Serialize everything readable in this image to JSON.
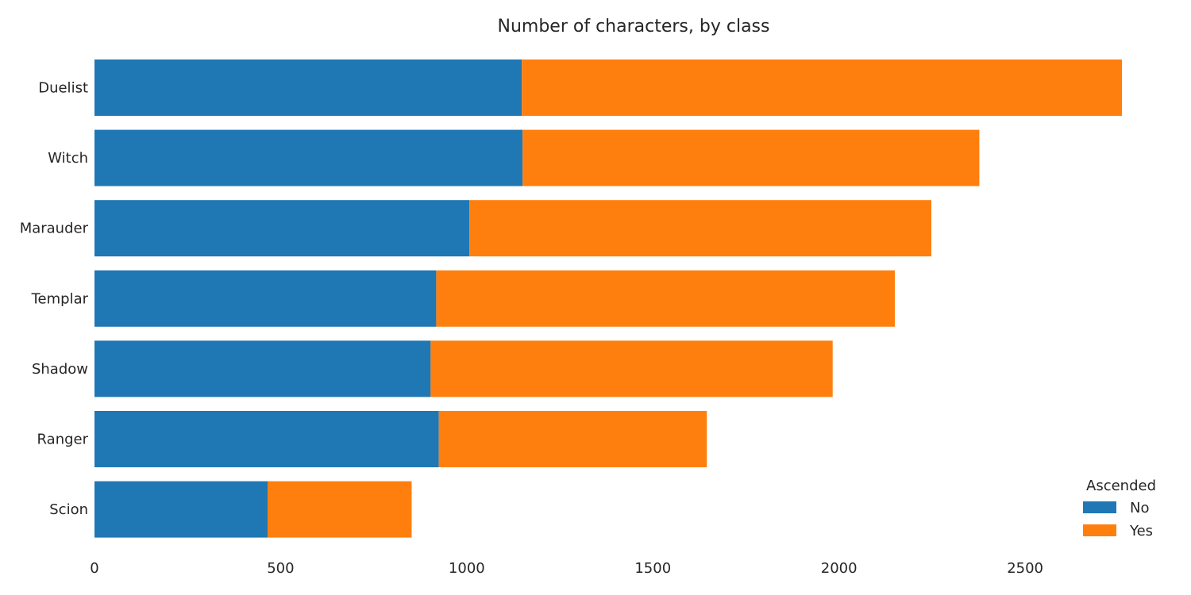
{
  "chart_data": {
    "type": "bar",
    "orientation": "horizontal",
    "stacked": true,
    "title": "Number of characters, by class",
    "xlabel": "",
    "ylabel": "",
    "categories": [
      "Duelist",
      "Witch",
      "Marauder",
      "Templar",
      "Shadow",
      "Ranger",
      "Scion"
    ],
    "series": [
      {
        "name": "No",
        "color": "#1f77b4",
        "values": [
          1148,
          1150,
          1007,
          918,
          903,
          925,
          465
        ]
      },
      {
        "name": "Yes",
        "color": "#ff7f0e",
        "values": [
          1612,
          1227,
          1241,
          1232,
          1080,
          720,
          387
        ]
      }
    ],
    "xlim": [
      0,
      2760
    ],
    "xticks": [
      0,
      500,
      1000,
      1500,
      2000,
      2500
    ],
    "xtick_labels": [
      "0",
      "500",
      "1000",
      "1500",
      "2000",
      "2500"
    ],
    "grid": false,
    "legend": {
      "title": "Ascended",
      "placement": "bottom-right"
    }
  }
}
